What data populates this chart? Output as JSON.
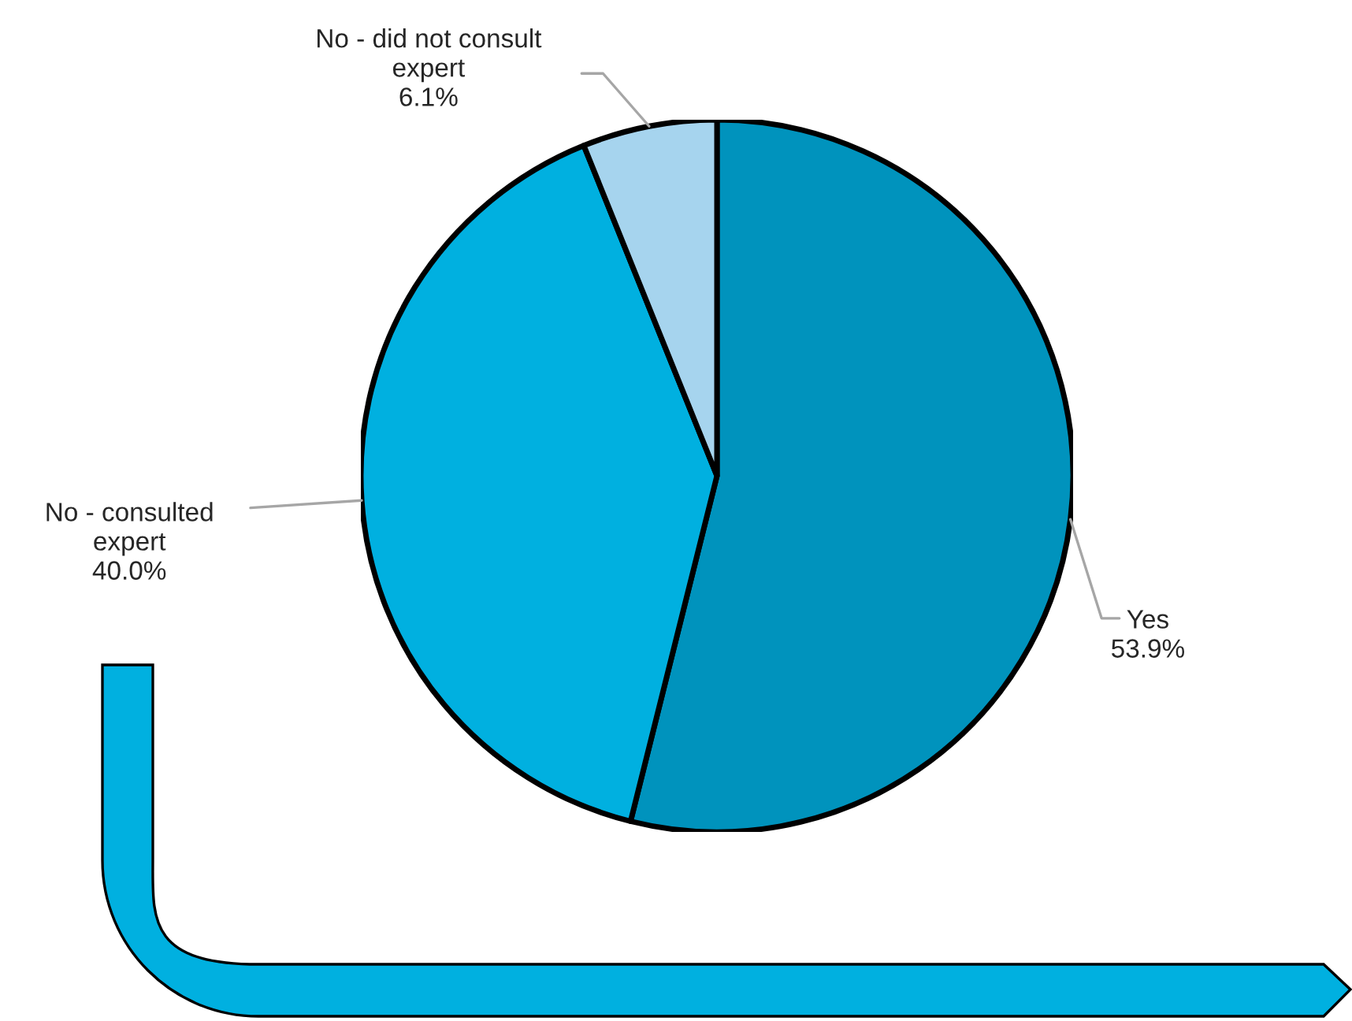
{
  "chart_data": {
    "type": "pie",
    "categories": [
      "Yes",
      "No - consulted expert",
      "No - did not consult expert"
    ],
    "values": [
      53.9,
      40.0,
      6.1
    ],
    "value_labels": [
      "53.9%",
      "40.0%",
      "6.1%"
    ],
    "colors": [
      "#0093bd",
      "#00b0e0",
      "#a6d4ee"
    ],
    "legend": false
  }
}
